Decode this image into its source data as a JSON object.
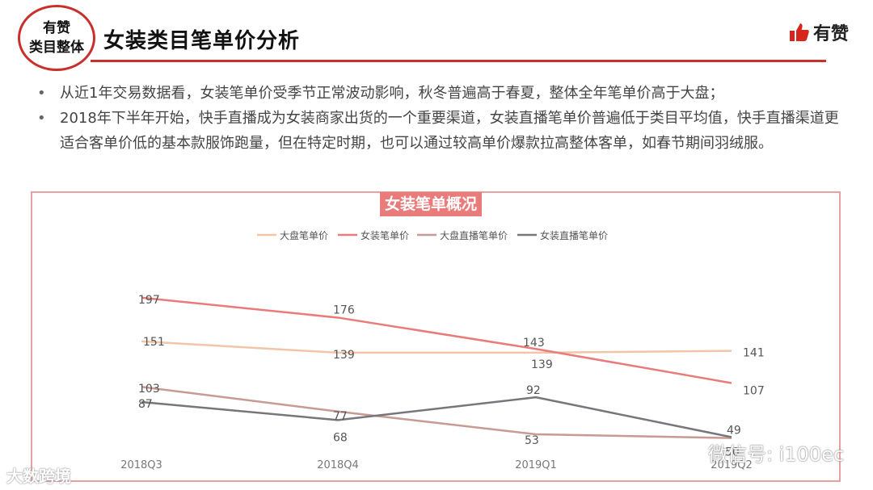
{
  "header": {
    "badge_line1": "有赞",
    "badge_line2": "类目整体",
    "title": "女装类目笔单价分析",
    "brand": "有赞"
  },
  "bullets": [
    "从近1年交易数据看，女装笔单价受季节正常波动影响，秋冬普遍高于春夏，整体全年笔单价高于大盘；",
    "2018年下半年开始，快手直播成为女装商家出货的一个重要渠道，女装直播笔单价普遍低于类目平均值，快手直播渠道更适合客单价低的基本款服饰跑量，但在特定时期，也可以通过较高单价爆款拉高整体客单，如春节期间羽绒服。"
  ],
  "bullet_symbol": "•",
  "watermarks": {
    "left": "大数跨境",
    "right": "微信号: i100ec"
  },
  "chart_data": {
    "type": "line",
    "title": "女装笔单概况",
    "categories": [
      "2018Q3",
      "2018Q4",
      "2019Q1",
      "2019Q2"
    ],
    "series": [
      {
        "name": "大盘笔单价",
        "values": [
          151,
          139,
          139,
          141
        ],
        "color": "#f2c4a8"
      },
      {
        "name": "女装笔单价",
        "values": [
          197,
          176,
          143,
          107
        ],
        "color": "#e97b7b"
      },
      {
        "name": "大盘直播笔单价",
        "values": [
          103,
          77,
          53,
          49
        ],
        "color": "#c79a94"
      },
      {
        "name": "女装直播笔单价",
        "values": [
          87,
          68,
          92,
          50
        ],
        "color": "#77767a"
      }
    ],
    "ylim": [
      30,
      230
    ],
    "grid": false,
    "legend": "top-center",
    "xlabel": "",
    "ylabel": ""
  }
}
